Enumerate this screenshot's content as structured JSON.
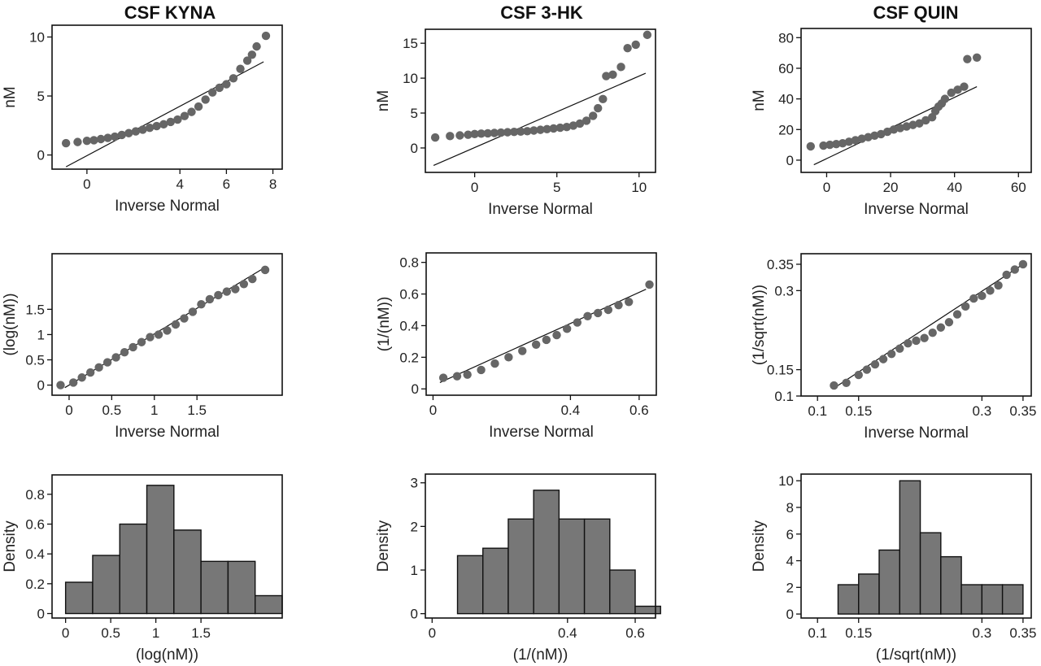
{
  "chart_data": [
    {
      "type": "scatter",
      "column_title": "CSF KYNA",
      "xlabel": "Inverse Normal",
      "ylabel": "nM",
      "xlim": [
        -1.5,
        8.4
      ],
      "ylim": [
        -1.2,
        11.0
      ],
      "xticks": [
        0,
        4,
        6,
        8
      ],
      "yticks": [
        0,
        5,
        10
      ],
      "fit_line": [
        [
          -0.9,
          -1.0
        ],
        [
          7.6,
          7.9
        ]
      ],
      "points": [
        [
          -0.9,
          1.0
        ],
        [
          -0.4,
          1.1
        ],
        [
          0.0,
          1.2
        ],
        [
          0.3,
          1.25
        ],
        [
          0.6,
          1.35
        ],
        [
          0.9,
          1.45
        ],
        [
          1.2,
          1.55
        ],
        [
          1.5,
          1.7
        ],
        [
          1.8,
          1.85
        ],
        [
          2.1,
          2.0
        ],
        [
          2.4,
          2.15
        ],
        [
          2.7,
          2.3
        ],
        [
          3.0,
          2.45
        ],
        [
          3.3,
          2.6
        ],
        [
          3.6,
          2.8
        ],
        [
          3.9,
          3.0
        ],
        [
          4.2,
          3.3
        ],
        [
          4.5,
          3.65
        ],
        [
          4.8,
          4.1
        ],
        [
          5.1,
          4.7
        ],
        [
          5.4,
          5.3
        ],
        [
          5.7,
          5.7
        ],
        [
          6.0,
          6.0
        ],
        [
          6.3,
          6.5
        ],
        [
          6.6,
          7.3
        ],
        [
          6.9,
          8.0
        ],
        [
          7.1,
          8.5
        ],
        [
          7.3,
          9.2
        ],
        [
          7.7,
          10.1
        ]
      ]
    },
    {
      "type": "scatter",
      "column_title": "CSF 3-HK",
      "xlabel": "Inverse Normal",
      "ylabel": "nM",
      "xlim": [
        -3.0,
        11.0
      ],
      "ylim": [
        -3.5,
        17.0
      ],
      "xticks": [
        0,
        5,
        10
      ],
      "yticks": [
        0,
        5,
        10,
        15
      ],
      "fit_line": [
        [
          -2.5,
          -2.5
        ],
        [
          10.4,
          10.7
        ]
      ],
      "points": [
        [
          -2.4,
          1.5
        ],
        [
          -1.5,
          1.7
        ],
        [
          -0.9,
          1.8
        ],
        [
          -0.4,
          1.9
        ],
        [
          0.0,
          2.0
        ],
        [
          0.4,
          2.05
        ],
        [
          0.8,
          2.1
        ],
        [
          1.2,
          2.15
        ],
        [
          1.6,
          2.2
        ],
        [
          2.0,
          2.25
        ],
        [
          2.4,
          2.3
        ],
        [
          2.8,
          2.35
        ],
        [
          3.2,
          2.4
        ],
        [
          3.6,
          2.5
        ],
        [
          4.0,
          2.6
        ],
        [
          4.4,
          2.7
        ],
        [
          4.8,
          2.8
        ],
        [
          5.2,
          2.9
        ],
        [
          5.6,
          3.0
        ],
        [
          6.0,
          3.2
        ],
        [
          6.4,
          3.5
        ],
        [
          6.8,
          3.9
        ],
        [
          7.2,
          4.6
        ],
        [
          7.5,
          5.7
        ],
        [
          7.8,
          7.0
        ],
        [
          8.0,
          10.3
        ],
        [
          8.4,
          10.5
        ],
        [
          8.9,
          11.6
        ],
        [
          9.3,
          14.3
        ],
        [
          9.8,
          14.8
        ],
        [
          10.5,
          16.2
        ]
      ]
    },
    {
      "type": "scatter",
      "column_title": "CSF QUIN",
      "xlabel": "Inverse Normal",
      "ylabel": "nM",
      "xlim": [
        -8,
        64
      ],
      "ylim": [
        -8,
        86
      ],
      "xticks": [
        0,
        20,
        40,
        60
      ],
      "yticks": [
        0,
        20,
        40,
        60,
        80
      ],
      "fit_line": [
        [
          -4,
          -3
        ],
        [
          47,
          48
        ]
      ],
      "points": [
        [
          -5,
          9
        ],
        [
          -1,
          9.5
        ],
        [
          1,
          10
        ],
        [
          3,
          10.5
        ],
        [
          5,
          11
        ],
        [
          7,
          12
        ],
        [
          9,
          13
        ],
        [
          11,
          14
        ],
        [
          13,
          15
        ],
        [
          15,
          16
        ],
        [
          17,
          17
        ],
        [
          19,
          18.5
        ],
        [
          21,
          20
        ],
        [
          23,
          21
        ],
        [
          25,
          22
        ],
        [
          27,
          23
        ],
        [
          29,
          24
        ],
        [
          31,
          26
        ],
        [
          33,
          28
        ],
        [
          34,
          32
        ],
        [
          35,
          35
        ],
        [
          36,
          37
        ],
        [
          37,
          40
        ],
        [
          39,
          44
        ],
        [
          41,
          46
        ],
        [
          43,
          48
        ],
        [
          44,
          66
        ],
        [
          47,
          67
        ]
      ]
    },
    {
      "type": "scatter",
      "column_title": "",
      "xlabel": "Inverse Normal",
      "ylabel": "(log(nM))",
      "xlim": [
        -0.2,
        2.5
      ],
      "ylim": [
        -0.2,
        2.6
      ],
      "xticks": [
        0,
        0.5,
        1,
        1.5
      ],
      "yticks": [
        0,
        0.5,
        1,
        1.5
      ],
      "fit_line": [
        [
          -0.05,
          -0.05
        ],
        [
          2.27,
          2.3
        ]
      ],
      "points": [
        [
          -0.1,
          0.0
        ],
        [
          0.05,
          0.05
        ],
        [
          0.15,
          0.15
        ],
        [
          0.25,
          0.25
        ],
        [
          0.35,
          0.35
        ],
        [
          0.45,
          0.45
        ],
        [
          0.55,
          0.55
        ],
        [
          0.65,
          0.65
        ],
        [
          0.75,
          0.75
        ],
        [
          0.85,
          0.85
        ],
        [
          0.95,
          0.95
        ],
        [
          1.05,
          1.0
        ],
        [
          1.15,
          1.08
        ],
        [
          1.25,
          1.2
        ],
        [
          1.35,
          1.32
        ],
        [
          1.45,
          1.45
        ],
        [
          1.55,
          1.6
        ],
        [
          1.65,
          1.7
        ],
        [
          1.75,
          1.78
        ],
        [
          1.85,
          1.85
        ],
        [
          1.95,
          1.9
        ],
        [
          2.05,
          2.0
        ],
        [
          2.15,
          2.1
        ],
        [
          2.3,
          2.28
        ]
      ]
    },
    {
      "type": "scatter",
      "column_title": "",
      "xlabel": "Inverse Normal",
      "ylabel": "(1/(nM))",
      "xlim": [
        -0.02,
        0.65
      ],
      "ylim": [
        -0.04,
        0.86
      ],
      "xticks": [
        0,
        0.4,
        0.6
      ],
      "yticks": [
        0,
        0.2,
        0.4,
        0.6,
        0.8
      ],
      "fit_line": [
        [
          0.02,
          0.04
        ],
        [
          0.62,
          0.63
        ]
      ],
      "points": [
        [
          0.03,
          0.07
        ],
        [
          0.07,
          0.08
        ],
        [
          0.1,
          0.09
        ],
        [
          0.14,
          0.12
        ],
        [
          0.18,
          0.16
        ],
        [
          0.22,
          0.2
        ],
        [
          0.26,
          0.24
        ],
        [
          0.3,
          0.28
        ],
        [
          0.33,
          0.31
        ],
        [
          0.36,
          0.34
        ],
        [
          0.39,
          0.38
        ],
        [
          0.42,
          0.42
        ],
        [
          0.45,
          0.46
        ],
        [
          0.48,
          0.48
        ],
        [
          0.51,
          0.5
        ],
        [
          0.54,
          0.53
        ],
        [
          0.57,
          0.55
        ],
        [
          0.63,
          0.66
        ]
      ]
    },
    {
      "type": "scatter",
      "column_title": "",
      "xlabel": "Inverse Normal",
      "ylabel": "(1/sqrt(nM))",
      "xlim": [
        0.08,
        0.36
      ],
      "ylim": [
        0.1,
        0.37
      ],
      "xticks": [
        0.1,
        0.15,
        0.3,
        0.35
      ],
      "yticks": [
        0.1,
        0.15,
        0.3,
        0.35
      ],
      "fit_line": [
        [
          0.12,
          0.115
        ],
        [
          0.35,
          0.35
        ]
      ],
      "points": [
        [
          0.12,
          0.12
        ],
        [
          0.135,
          0.125
        ],
        [
          0.15,
          0.14
        ],
        [
          0.16,
          0.15
        ],
        [
          0.17,
          0.16
        ],
        [
          0.18,
          0.17
        ],
        [
          0.19,
          0.18
        ],
        [
          0.2,
          0.19
        ],
        [
          0.21,
          0.2
        ],
        [
          0.22,
          0.205
        ],
        [
          0.23,
          0.21
        ],
        [
          0.24,
          0.22
        ],
        [
          0.25,
          0.23
        ],
        [
          0.26,
          0.24
        ],
        [
          0.27,
          0.255
        ],
        [
          0.28,
          0.27
        ],
        [
          0.29,
          0.285
        ],
        [
          0.3,
          0.29
        ],
        [
          0.31,
          0.3
        ],
        [
          0.32,
          0.31
        ],
        [
          0.33,
          0.33
        ],
        [
          0.34,
          0.34
        ],
        [
          0.35,
          0.35
        ]
      ]
    },
    {
      "type": "bar",
      "column_title": "",
      "xlabel": "(log(nM))",
      "ylabel": "Density",
      "xlim": [
        -0.15,
        2.4
      ],
      "ylim": [
        -0.03,
        0.93
      ],
      "xticks": [
        0,
        0.5,
        1,
        1.5
      ],
      "yticks": [
        0,
        0.2,
        0.4,
        0.6,
        0.8
      ],
      "bins": [
        [
          0.0,
          0.21
        ],
        [
          0.3,
          0.39
        ],
        [
          0.6,
          0.6
        ],
        [
          0.9,
          0.86
        ],
        [
          1.2,
          0.56
        ],
        [
          1.5,
          0.35
        ],
        [
          1.8,
          0.35
        ],
        [
          2.1,
          0.12
        ]
      ],
      "bin_width": 0.3
    },
    {
      "type": "bar",
      "column_title": "",
      "xlabel": "(1/(nM))",
      "ylabel": "Density",
      "xlim": [
        -0.02,
        0.66
      ],
      "ylim": [
        -0.1,
        3.2
      ],
      "xticks": [
        0,
        0.4,
        0.6
      ],
      "yticks": [
        0,
        1,
        2,
        3
      ],
      "bins": [
        [
          0.0,
          0.0
        ],
        [
          0.075,
          1.33
        ],
        [
          0.15,
          1.5
        ],
        [
          0.225,
          2.17
        ],
        [
          0.3,
          2.83
        ],
        [
          0.375,
          2.17
        ],
        [
          0.45,
          2.17
        ],
        [
          0.525,
          1.0
        ],
        [
          0.6,
          0.17
        ]
      ],
      "bin_width": 0.075
    },
    {
      "type": "bar",
      "column_title": "",
      "xlabel": "(1/sqrt(nM))",
      "ylabel": "Density",
      "xlim": [
        0.08,
        0.36
      ],
      "ylim": [
        -0.3,
        10.5
      ],
      "xticks": [
        0.1,
        0.15,
        0.3,
        0.35
      ],
      "yticks": [
        0,
        2,
        4,
        6,
        8,
        10
      ],
      "bins": [
        [
          0.1,
          0.0
        ],
        [
          0.125,
          2.2
        ],
        [
          0.15,
          3.0
        ],
        [
          0.175,
          4.8
        ],
        [
          0.2,
          10.0
        ],
        [
          0.225,
          6.1
        ],
        [
          0.25,
          4.3
        ],
        [
          0.275,
          2.2
        ],
        [
          0.3,
          2.2
        ],
        [
          0.325,
          2.2
        ]
      ],
      "bin_width": 0.025
    }
  ]
}
